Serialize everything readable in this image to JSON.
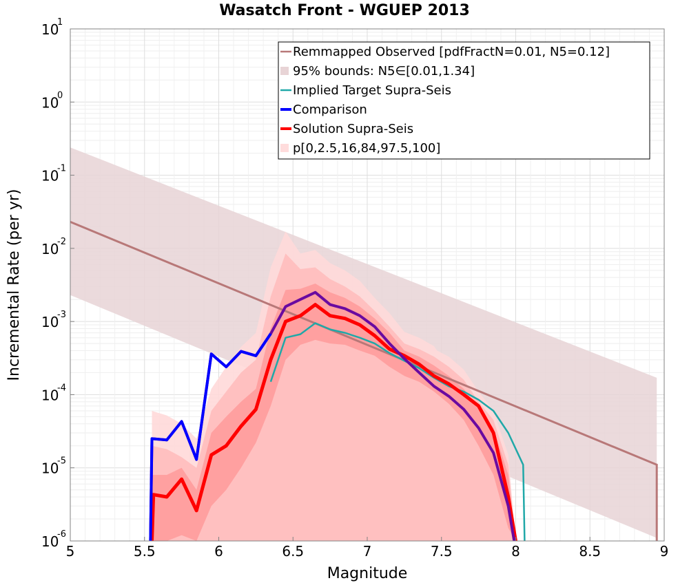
{
  "chart_data": {
    "type": "line",
    "title": "Wasatch Front - WGUEP 2013",
    "xlabel": "Magnitude",
    "ylabel": "Incremental Rate (per yr)",
    "xlim": [
      5,
      9
    ],
    "ylim": [
      1e-06,
      10
    ],
    "y_scale": "log",
    "grid": true,
    "legend_position": "top-right",
    "x_ticks": [
      "5",
      "5.5",
      "6",
      "6.5",
      "7",
      "7.5",
      "8",
      "8.5",
      "9"
    ],
    "y_ticks": [
      {
        "base": "10",
        "exp": "1"
      },
      {
        "base": "10",
        "exp": "0"
      },
      {
        "base": "10",
        "exp": "-1"
      },
      {
        "base": "10",
        "exp": "-2"
      },
      {
        "base": "10",
        "exp": "-3"
      },
      {
        "base": "10",
        "exp": "-4"
      },
      {
        "base": "10",
        "exp": "-5"
      },
      {
        "base": "10",
        "exp": "-6"
      }
    ],
    "legend": [
      {
        "label": "Remmapped Observed [pdfFractN=0.01, N5=0.12]",
        "color": "#b87878",
        "kind": "line"
      },
      {
        "label": "95% bounds: N5∈[0.01,1.34]",
        "color": "#e8d4d6",
        "kind": "patch"
      },
      {
        "label": "Implied Target Supra-Seis",
        "color": "#20a8a8",
        "kind": "line"
      },
      {
        "label": "Comparison",
        "color": "#0000ff",
        "kind": "line"
      },
      {
        "label": "Solution Supra-Seis",
        "color": "#ff0000",
        "kind": "line"
      },
      {
        "label": "p[0,2.5,16,84,97.5,100]",
        "color": "#ffdcdc",
        "kind": "patch"
      }
    ],
    "observed_band": {
      "color": "#b87878",
      "fill": "#e8d4d6",
      "x": [
        5.0,
        8.95
      ],
      "low": [
        0.0023,
        1.1e-06
      ],
      "high": [
        0.24,
        0.00017
      ],
      "mid": [
        0.023,
        1.1e-05
      ]
    },
    "percentile_bands": [
      {
        "fill": "#ffd9d9",
        "x": [
          5.55,
          5.65,
          5.75,
          5.85,
          5.95,
          6.05,
          6.15,
          6.25,
          6.35,
          6.45,
          6.55,
          6.65,
          6.75,
          6.85,
          6.95,
          7.05,
          7.15,
          7.25,
          7.35,
          7.45,
          7.47,
          7.55,
          7.65,
          7.75,
          7.85,
          7.95,
          8.0
        ],
        "low": [
          1e-06,
          1e-06,
          1e-06,
          1e-06,
          1e-06,
          1e-06,
          1e-06,
          1e-06,
          1e-06,
          1e-06,
          1e-06,
          1e-06,
          1e-06,
          1e-06,
          1e-06,
          1e-06,
          1e-06,
          1e-06,
          1e-06,
          1e-06,
          1e-06,
          1e-06,
          1e-06,
          1e-06,
          1e-06,
          1e-06,
          1e-06
        ],
        "high": [
          6e-05,
          5.2e-05,
          4e-05,
          2.5e-05,
          0.00012,
          0.00024,
          0.00045,
          0.0007,
          0.0055,
          0.017,
          0.0085,
          0.0095,
          0.0063,
          0.005,
          0.0036,
          0.0021,
          0.0013,
          0.00072,
          0.0006,
          0.00046,
          0.0004,
          0.00033,
          0.00022,
          0.00011,
          6e-05,
          1.5e-05,
          1e-06
        ]
      },
      {
        "fill": "#ffbcbc",
        "x": [
          5.55,
          5.65,
          5.75,
          5.85,
          5.95,
          6.05,
          6.15,
          6.25,
          6.35,
          6.45,
          6.55,
          6.65,
          6.75,
          6.85,
          6.95,
          7.05,
          7.15,
          7.25,
          7.35,
          7.45,
          7.55,
          7.65,
          7.75,
          7.85,
          7.95,
          8.0
        ],
        "low": [
          1e-06,
          1e-06,
          1e-06,
          1e-06,
          1e-06,
          1e-06,
          1e-06,
          1e-06,
          1e-06,
          1e-06,
          1e-06,
          1e-06,
          1e-06,
          1e-06,
          1e-06,
          1e-06,
          1e-06,
          1e-06,
          1e-06,
          1e-06,
          1e-06,
          1e-06,
          1e-06,
          1e-06,
          1e-06,
          1e-06
        ],
        "high": [
          2e-05,
          1.8e-05,
          1.4e-05,
          1e-05,
          6e-05,
          0.00011,
          0.0002,
          0.0003,
          0.0022,
          0.0085,
          0.0052,
          0.0055,
          0.0038,
          0.003,
          0.0022,
          0.0014,
          0.00085,
          0.0005,
          0.00042,
          0.00033,
          0.00024,
          0.00016,
          8e-05,
          4.5e-05,
          1.1e-05,
          1e-06
        ]
      },
      {
        "fill": "#ff9c9c",
        "x": [
          5.55,
          5.65,
          5.75,
          5.85,
          5.95,
          6.05,
          6.15,
          6.25,
          6.35,
          6.45,
          6.55,
          6.65,
          6.75,
          6.85,
          6.95,
          7.05,
          7.15,
          7.25,
          7.35,
          7.45,
          7.55,
          7.65,
          7.75,
          7.85,
          7.95,
          8.0
        ],
        "low": [
          1e-06,
          1e-06,
          1.2e-06,
          1e-06,
          3e-06,
          5e-06,
          1e-05,
          2.2e-05,
          7e-05,
          0.0003,
          0.00048,
          0.00056,
          0.0005,
          0.00048,
          0.0004,
          0.00034,
          0.00024,
          0.00018,
          0.00015,
          0.00011,
          7.5e-05,
          4.5e-05,
          2e-05,
          8e-06,
          1.5e-06,
          1e-06
        ],
        "high": [
          8e-06,
          8e-06,
          1e-05,
          5e-06,
          3e-05,
          5e-05,
          8e-05,
          0.00012,
          0.0008,
          0.0027,
          0.0028,
          0.0033,
          0.0025,
          0.0021,
          0.0016,
          0.0011,
          0.0007,
          0.0004,
          0.00033,
          0.00025,
          0.00018,
          0.00012,
          6.5e-05,
          3.5e-05,
          8e-06,
          1e-06
        ]
      }
    ],
    "series": [
      {
        "name": "Implied Target Supra-Seis",
        "color": "#20a8a8",
        "width": 2.5,
        "x": [
          6.35,
          6.45,
          6.55,
          6.65,
          6.75,
          6.85,
          6.95,
          7.05,
          7.15,
          7.25,
          7.35,
          7.45,
          7.55,
          7.65,
          7.75,
          7.85,
          7.95,
          8.05,
          8.06
        ],
        "y": [
          0.00015,
          0.0006,
          0.00067,
          0.00095,
          0.00078,
          0.0007,
          0.0006,
          0.0005,
          0.00037,
          0.00029,
          0.00023,
          0.00017,
          0.00013,
          0.00011,
          8.5e-05,
          6e-05,
          3e-05,
          1.1e-05,
          1e-06
        ]
      },
      {
        "name": "Comparison",
        "color": "#0000ff",
        "width": 4,
        "x": [
          5.54,
          5.55,
          5.65,
          5.75,
          5.85,
          5.95,
          6.05,
          6.15,
          6.25,
          6.35,
          6.45,
          6.55,
          6.65,
          6.75,
          6.85,
          6.95,
          7.05,
          7.15,
          7.25,
          7.35,
          7.45,
          7.55,
          7.65,
          7.75,
          7.85,
          7.95,
          7.99
        ],
        "y": [
          1e-06,
          2.5e-05,
          2.4e-05,
          4.3e-05,
          1.3e-05,
          0.00036,
          0.00024,
          0.00039,
          0.00034,
          0.00068,
          0.0016,
          0.002,
          0.0025,
          0.0017,
          0.0015,
          0.0012,
          0.00085,
          0.0005,
          0.00031,
          0.0002,
          0.00013,
          9.5e-05,
          6.3e-05,
          3.5e-05,
          1.6e-05,
          3e-06,
          1e-06
        ]
      },
      {
        "name": "Solution Supra-Seis",
        "color": "#ff0000",
        "width": 5,
        "x": [
          5.55,
          5.56,
          5.65,
          5.75,
          5.85,
          5.95,
          6.05,
          6.15,
          6.25,
          6.35,
          6.45,
          6.55,
          6.65,
          6.75,
          6.85,
          6.95,
          7.05,
          7.15,
          7.25,
          7.35,
          7.45,
          7.55,
          7.65,
          7.75,
          7.85,
          7.95,
          8.0
        ],
        "y": [
          1e-06,
          4.3e-06,
          4e-06,
          7e-06,
          2.6e-06,
          1.5e-05,
          2e-05,
          3.7e-05,
          6.3e-05,
          0.0003,
          0.001,
          0.0012,
          0.0017,
          0.0012,
          0.0011,
          0.0009,
          0.00064,
          0.00042,
          0.00034,
          0.00026,
          0.00018,
          0.00014,
          0.0001,
          7e-05,
          3e-05,
          4e-06,
          1e-06
        ]
      }
    ],
    "overlap_color": "#6a0aa0"
  }
}
